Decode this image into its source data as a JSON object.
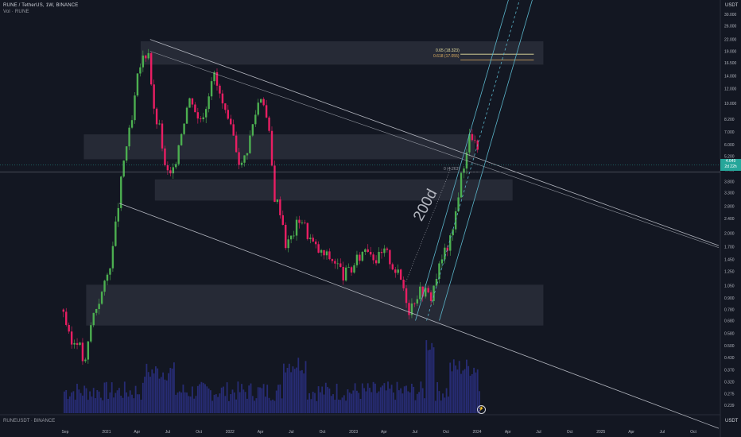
{
  "header": {
    "title": "RUNE / TetherUS, 1W, BINANCE",
    "volume": "Vol · RUNE"
  },
  "footer_symbol": "RUNEUSDT · BINANCE",
  "currency_top": "USDT",
  "currency_bottom": "USDT",
  "annotations": {
    "ma_label": "200d",
    "fib_065": "0.65 (18.323)",
    "fib_0618": "0.618 (17.055)",
    "fib_0": "0 (4.263)"
  },
  "last_price": {
    "line1": "4.649",
    "line2": "2d 22h"
  },
  "colors": {
    "background": "#131722",
    "up": "#4caf50",
    "down": "#e91e63",
    "zone": "#2a2e39",
    "channel": "#5ab4c9",
    "trendline": "#b2b5be",
    "volume": "#2a2f7e",
    "price_tag": "#26a69a"
  },
  "chart_data": {
    "type": "candlestick",
    "log_scale": true,
    "y_ticks": [
      "0.239",
      "0.275",
      "0.320",
      "0.370",
      "0.430",
      "0.500",
      "0.580",
      "0.680",
      "0.780",
      "0.900",
      "1.050",
      "1.250",
      "1.450",
      "1.700",
      "2.000",
      "2.400",
      "2.800",
      "3.300",
      "3.800",
      "4.400",
      "5.200",
      "6.000",
      "7.000",
      "8.200",
      "10.000",
      "12.000",
      "14.000",
      "16.500",
      "19.000",
      "22.000",
      "26.000",
      "30.000"
    ],
    "x_ticks": [
      "Sep",
      "2021",
      "Apr",
      "Jul",
      "Oct",
      "2022",
      "Apr",
      "Jul",
      "Oct",
      "2023",
      "Apr",
      "Jul",
      "Oct",
      "2024",
      "Apr",
      "Jul",
      "Oct",
      "2025",
      "Apr",
      "Jul",
      "Oct"
    ],
    "close_path": [
      [
        "2020-08-24",
        0.78
      ],
      [
        "2020-09-14",
        0.5
      ],
      [
        "2020-10-05",
        0.55
      ],
      [
        "2020-10-26",
        0.38
      ],
      [
        "2020-11-16",
        0.7
      ],
      [
        "2020-12-07",
        0.88
      ],
      [
        "2020-12-28",
        1.1
      ],
      [
        "2021-01-18",
        1.7
      ],
      [
        "2021-02-08",
        3.5
      ],
      [
        "2021-02-22",
        5.5
      ],
      [
        "2021-03-15",
        8.0
      ],
      [
        "2021-03-29",
        13.0
      ],
      [
        "2021-04-12",
        17.0
      ],
      [
        "2021-05-03",
        19.5
      ],
      [
        "2021-05-17",
        9.0
      ],
      [
        "2021-06-07",
        7.0
      ],
      [
        "2021-06-21",
        4.3
      ],
      [
        "2021-07-12",
        4.0
      ],
      [
        "2021-08-02",
        6.5
      ],
      [
        "2021-08-23",
        9.5
      ],
      [
        "2021-09-06",
        11.0
      ],
      [
        "2021-09-27",
        8.0
      ],
      [
        "2021-10-18",
        9.5
      ],
      [
        "2021-11-08",
        15.0
      ],
      [
        "2021-11-29",
        11.0
      ],
      [
        "2021-12-20",
        8.0
      ],
      [
        "2022-01-10",
        6.5
      ],
      [
        "2022-01-31",
        4.5
      ],
      [
        "2022-02-21",
        6.0
      ],
      [
        "2022-03-21",
        10.0
      ],
      [
        "2022-04-04",
        11.5
      ],
      [
        "2022-04-25",
        6.5
      ],
      [
        "2022-05-09",
        3.2
      ],
      [
        "2022-05-30",
        2.6
      ],
      [
        "2022-06-13",
        1.7
      ],
      [
        "2022-07-04",
        2.0
      ],
      [
        "2022-07-25",
        2.5
      ],
      [
        "2022-08-15",
        2.0
      ],
      [
        "2022-09-05",
        1.7
      ],
      [
        "2022-09-26",
        1.55
      ],
      [
        "2022-10-17",
        1.5
      ],
      [
        "2022-11-07",
        1.4
      ],
      [
        "2022-11-28",
        1.2
      ],
      [
        "2022-12-19",
        1.25
      ],
      [
        "2023-01-16",
        1.5
      ],
      [
        "2023-02-06",
        1.75
      ],
      [
        "2023-03-06",
        1.45
      ],
      [
        "2023-04-03",
        1.6
      ],
      [
        "2023-04-24",
        1.35
      ],
      [
        "2023-05-22",
        1.1
      ],
      [
        "2023-06-12",
        0.78
      ],
      [
        "2023-07-03",
        0.95
      ],
      [
        "2023-07-24",
        1.0
      ],
      [
        "2023-08-14",
        0.9
      ],
      [
        "2023-09-04",
        1.25
      ],
      [
        "2023-09-25",
        1.6
      ],
      [
        "2023-10-16",
        1.9
      ],
      [
        "2023-11-06",
        3.5
      ],
      [
        "2023-11-27",
        5.5
      ],
      [
        "2023-12-11",
        7.0
      ],
      [
        "2023-12-25",
        6.0
      ],
      [
        "2024-01-08",
        4.65
      ]
    ],
    "zones": [
      {
        "from": "2021-04-12",
        "to": "2024-07-15",
        "low": 16.1,
        "high": 21.5
      },
      {
        "from": "2020-10-26",
        "to": "2023-12-25",
        "low": 5.0,
        "high": 6.8
      },
      {
        "from": "2021-05-24",
        "to": "2024-04-15",
        "low": 3.0,
        "high": 3.9
      },
      {
        "from": "2020-11-02",
        "to": "2024-07-15",
        "low": 0.64,
        "high": 1.06
      }
    ],
    "fib_levels": [
      {
        "label": "0.65 (18.323)",
        "value": 18.323
      },
      {
        "label": "0.618 (17.055)",
        "value": 17.055
      },
      {
        "label": "0 (4.263)",
        "value": 4.263
      }
    ],
    "grid": false,
    "legend": "top-left"
  }
}
